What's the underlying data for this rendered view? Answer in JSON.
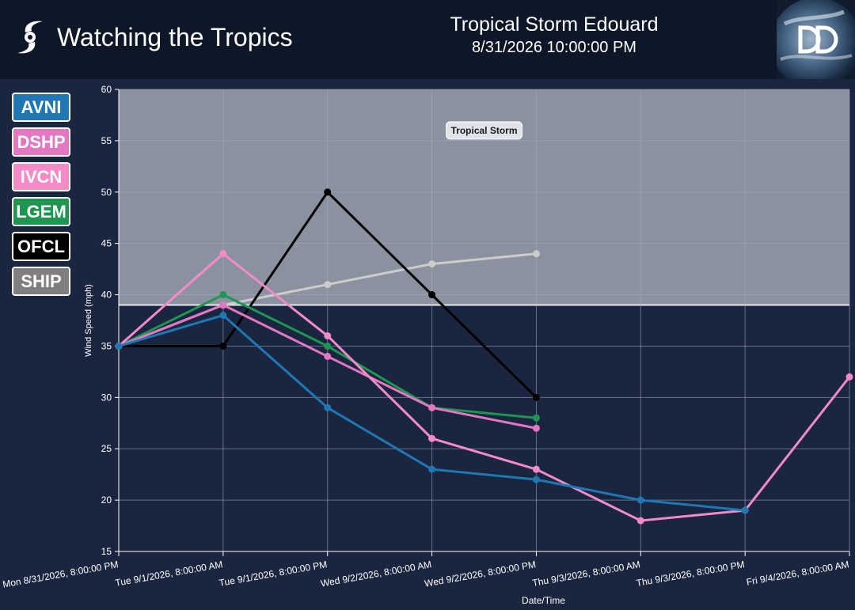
{
  "header": {
    "app_title": "Watching the Tropics",
    "storm_name": "Tropical Storm Edouard",
    "storm_time": "8/31/2026 10:00:00 PM",
    "brand_icon": "hurricane-icon",
    "logo_icon": "dd-logo-icon"
  },
  "legend": {
    "items": [
      {
        "label": "AVNI",
        "color": "#1f77b4"
      },
      {
        "label": "DSHP",
        "color": "#e377c2"
      },
      {
        "label": "IVCN",
        "color": "#f48bc8"
      },
      {
        "label": "LGEM",
        "color": "#1e9651"
      },
      {
        "label": "OFCL",
        "color": "#000000"
      },
      {
        "label": "SHIP",
        "color": "#7f7f7f"
      }
    ]
  },
  "chart_data": {
    "type": "line",
    "xlabel": "Date/Time",
    "ylabel": "Wind Speed (mph)",
    "ylim": [
      15,
      60
    ],
    "yticks": [
      15,
      20,
      25,
      30,
      35,
      40,
      45,
      50,
      55,
      60
    ],
    "categories": [
      "Mon 8/31/2026, 8:00:00 PM",
      "Tue 9/1/2026, 8:00:00 AM",
      "Tue 9/1/2026, 8:00:00 PM",
      "Wed 9/2/2026, 8:00:00 AM",
      "Wed 9/2/2026, 8:00:00 PM",
      "Thu 9/3/2026, 8:00:00 AM",
      "Thu 9/3/2026, 8:00:00 PM",
      "Fri 9/4/2026, 8:00:00 AM"
    ],
    "grid": true,
    "band": {
      "label": "Tropical Storm",
      "from": 39,
      "to": 60
    },
    "series": [
      {
        "name": "SHIP",
        "color": "#cccccc",
        "values": [
          35,
          39,
          41,
          43,
          44,
          null,
          null,
          null
        ]
      },
      {
        "name": "OFCL",
        "color": "#000000",
        "values": [
          35,
          35,
          50,
          40,
          30,
          null,
          null,
          null
        ]
      },
      {
        "name": "LGEM",
        "color": "#1e9651",
        "values": [
          35,
          40,
          35,
          29,
          28,
          null,
          null,
          null
        ]
      },
      {
        "name": "DSHP",
        "color": "#e377c2",
        "values": [
          35,
          39,
          34,
          29,
          27,
          null,
          null,
          null
        ]
      },
      {
        "name": "IVCN",
        "color": "#f48bc8",
        "values": [
          35,
          44,
          36,
          26,
          23,
          18,
          19,
          32
        ]
      },
      {
        "name": "AVNI",
        "color": "#1f77b4",
        "values": [
          35,
          38,
          29,
          23,
          22,
          20,
          19,
          null
        ]
      }
    ]
  }
}
